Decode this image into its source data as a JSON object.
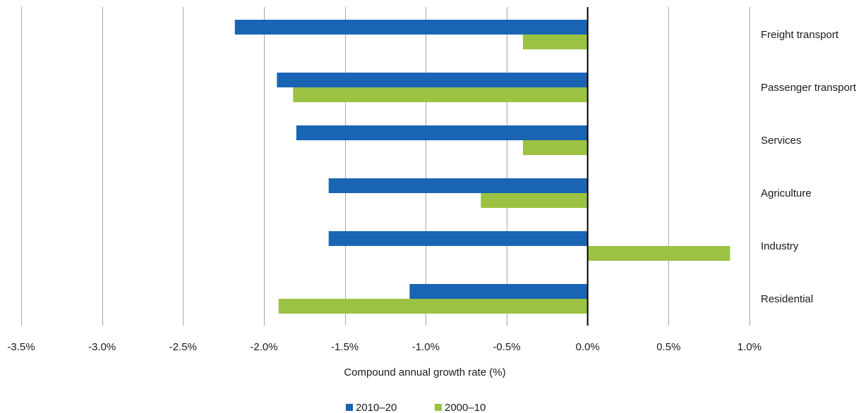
{
  "chart_data": {
    "type": "bar",
    "orientation": "horizontal",
    "categories": [
      "Freight transport",
      "Passenger transport",
      "Services",
      "Agriculture",
      "Industry",
      "Residential"
    ],
    "series": [
      {
        "name": "2010–20",
        "color": "#1a64b4",
        "values": [
          -2.18,
          -1.92,
          -1.8,
          -1.6,
          -1.6,
          -1.1
        ]
      },
      {
        "name": "2000–10",
        "color": "#9cc243",
        "values": [
          -0.4,
          -1.82,
          -0.4,
          -0.66,
          0.88,
          -1.91
        ]
      }
    ],
    "xlabel": "Compound annual growth rate (%)",
    "ylabel": "",
    "xlim": [
      -3.5,
      1.0
    ],
    "xticks": [
      -3.5,
      -3.0,
      -2.5,
      -2.0,
      -1.5,
      -1.0,
      -0.5,
      0.0,
      0.5,
      1.0
    ],
    "xtick_labels": [
      "-3.5%",
      "-3.0%",
      "-2.5%",
      "-2.0%",
      "-1.5%",
      "-1.0%",
      "-0.5%",
      "0.0%",
      "0.5%",
      "1.0%"
    ],
    "grid": "vertical",
    "legend_position": "bottom-center"
  }
}
